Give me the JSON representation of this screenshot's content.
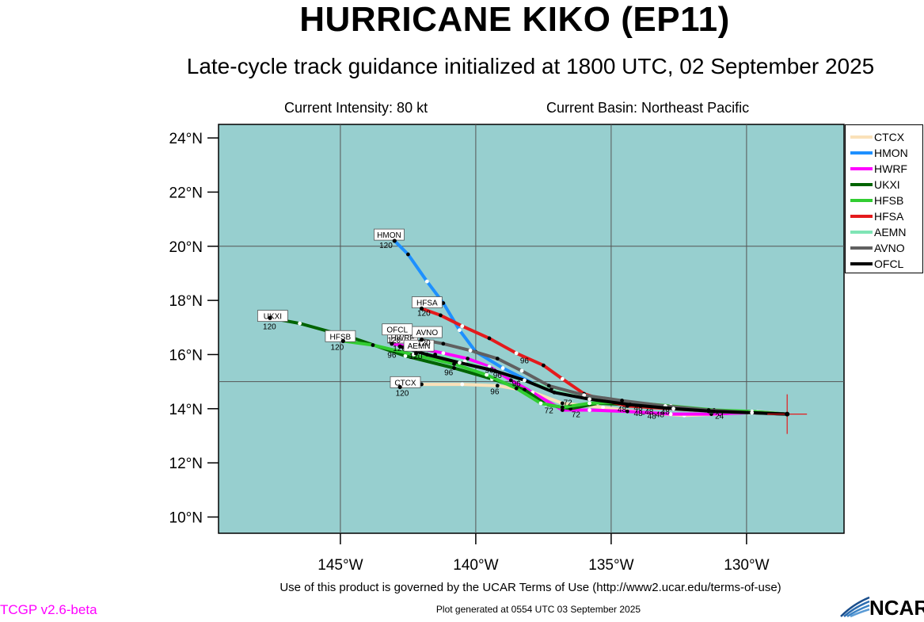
{
  "header": {
    "title": "HURRICANE KIKO (EP11)",
    "subtitle": "Late-cycle track guidance initialized at 1800 UTC, 02 September 2025",
    "current_intensity": "Current Intensity: 80 kt",
    "current_basin": "Current Basin: Northeast Pacific"
  },
  "footer": {
    "terms": "Use of this product is governed by the UCAR Terms of Use (http://www2.ucar.edu/terms-of-use)",
    "generated": "Plot generated at 0554 UTC   03 September 2025",
    "version": "TCGP v2.6-beta",
    "logo_text": "NCAR"
  },
  "colors": {
    "ocean": "#97cfcf",
    "grid": "#555555",
    "version_text": "#ff00ff"
  },
  "map": {
    "lon_range": [
      -149.5,
      -126.4
    ],
    "lat_range": [
      9.4,
      24.5
    ],
    "lat_ticks": [
      {
        "value": 24,
        "label": "24°N"
      },
      {
        "value": 22,
        "label": "22°N"
      },
      {
        "value": 20,
        "label": "20°N"
      },
      {
        "value": 18,
        "label": "18°N"
      },
      {
        "value": 16,
        "label": "16°N"
      },
      {
        "value": 14,
        "label": "14°N"
      },
      {
        "value": 12,
        "label": "12°N"
      },
      {
        "value": 10,
        "label": "10°N"
      }
    ],
    "lon_ticks": [
      {
        "value": -145,
        "label": "145°W"
      },
      {
        "value": -140,
        "label": "140°W"
      },
      {
        "value": -135,
        "label": "135°W"
      },
      {
        "value": -130,
        "label": "130°W"
      }
    ],
    "grid_lons": [
      -145,
      -140,
      -135,
      -130
    ],
    "grid_lats": [
      20,
      15
    ],
    "storm_position": {
      "lon": -128.5,
      "lat": 13.8
    }
  },
  "tracks": [
    {
      "name": "CTCX",
      "color": "#fae1b9",
      "points": [
        [
          -128.5,
          13.8
        ],
        [
          -129.6,
          13.9
        ],
        [
          -131.0,
          13.8
        ],
        [
          -132.3,
          13.75
        ],
        [
          -133.8,
          13.85
        ],
        [
          -135.3,
          14.05
        ],
        [
          -136.8,
          14.2
        ],
        [
          -138.0,
          14.65
        ],
        [
          -139.2,
          14.85
        ],
        [
          -140.5,
          14.9
        ],
        [
          -142.0,
          14.9
        ],
        [
          -142.8,
          14.8
        ]
      ],
      "marks": [
        {
          "lon": -131.0,
          "lat": 13.75,
          "label": "24"
        },
        {
          "lon": -133.5,
          "lat": 13.75,
          "label": "48"
        },
        {
          "lon": -139.3,
          "lat": 14.65,
          "label": "96"
        }
      ],
      "end_label": "120",
      "box_label": "CTCX",
      "box": {
        "lon": -142.6,
        "lat": 14.95
      }
    },
    {
      "name": "HMON",
      "color": "#1e90ff",
      "points": [
        [
          -128.5,
          13.8
        ],
        [
          -129.8,
          13.9
        ],
        [
          -131.2,
          13.9
        ],
        [
          -132.8,
          14.05
        ],
        [
          -134.5,
          14.2
        ],
        [
          -136.3,
          14.5
        ],
        [
          -137.8,
          14.9
        ],
        [
          -139.0,
          15.5
        ],
        [
          -140.0,
          16.1
        ],
        [
          -140.6,
          16.9
        ],
        [
          -141.2,
          17.9
        ],
        [
          -141.8,
          18.7
        ],
        [
          -142.5,
          19.7
        ],
        [
          -143.0,
          20.2
        ]
      ],
      "marks": [
        {
          "lon": -133.2,
          "lat": 13.8,
          "label": "48"
        },
        {
          "lon": -139.2,
          "lat": 15.25,
          "label": "96"
        }
      ],
      "end_label": "120",
      "box_label": "HMON",
      "box": {
        "lon": -143.2,
        "lat": 20.4
      }
    },
    {
      "name": "HWRF",
      "color": "#ff00ff",
      "points": [
        [
          -128.5,
          13.8
        ],
        [
          -129.9,
          13.85
        ],
        [
          -131.3,
          13.8
        ],
        [
          -132.8,
          13.8
        ],
        [
          -134.4,
          13.9
        ],
        [
          -135.8,
          13.95
        ],
        [
          -136.8,
          13.95
        ],
        [
          -137.9,
          14.6
        ],
        [
          -138.7,
          15.05
        ],
        [
          -139.5,
          15.55
        ],
        [
          -140.3,
          15.85
        ],
        [
          -141.2,
          16.05
        ],
        [
          -142.2,
          16.25
        ],
        [
          -143.1,
          16.4
        ]
      ],
      "marks": [
        {
          "lon": -136.3,
          "lat": 13.8,
          "label": "72"
        },
        {
          "lon": -139.5,
          "lat": 15.45,
          "label": "96"
        }
      ],
      "end_label": "120",
      "box_label": "HWRF",
      "box": {
        "lon": -142.7,
        "lat": 16.6
      }
    },
    {
      "name": "UKXI",
      "color": "#006400",
      "points": [
        [
          -128.5,
          13.8
        ],
        [
          -129.7,
          13.85
        ],
        [
          -131.1,
          13.9
        ],
        [
          -132.7,
          14.05
        ],
        [
          -134.2,
          14.15
        ],
        [
          -135.5,
          14.2
        ],
        [
          -136.5,
          14.0
        ],
        [
          -137.4,
          14.15
        ],
        [
          -138.2,
          14.7
        ],
        [
          -139.4,
          15.1
        ],
        [
          -140.8,
          15.5
        ],
        [
          -142.6,
          15.95
        ],
        [
          -144.5,
          16.6
        ],
        [
          -146.5,
          17.15
        ],
        [
          -147.6,
          17.35
        ]
      ],
      "marks": [
        {
          "lon": -134.0,
          "lat": 13.85,
          "label": "48"
        },
        {
          "lon": -137.3,
          "lat": 13.95,
          "label": "72"
        },
        {
          "lon": -141.0,
          "lat": 15.35,
          "label": "96"
        }
      ],
      "end_label": "120",
      "box_label": "UKXI",
      "box": {
        "lon": -147.5,
        "lat": 17.4
      }
    },
    {
      "name": "HFSB",
      "color": "#32cd32",
      "points": [
        [
          -128.5,
          13.8
        ],
        [
          -129.8,
          13.9
        ],
        [
          -131.2,
          13.95
        ],
        [
          -132.8,
          14.1
        ],
        [
          -134.5,
          14.25
        ],
        [
          -135.8,
          14.2
        ],
        [
          -136.8,
          14.05
        ],
        [
          -137.6,
          14.2
        ],
        [
          -138.5,
          14.75
        ],
        [
          -139.6,
          15.25
        ],
        [
          -140.8,
          15.65
        ],
        [
          -142.3,
          16.0
        ],
        [
          -143.8,
          16.35
        ],
        [
          -144.9,
          16.5
        ]
      ],
      "marks": [
        {
          "lon": -133.0,
          "lat": 13.9,
          "label": "48"
        },
        {
          "lon": -143.1,
          "lat": 16.0,
          "label": "96"
        }
      ],
      "end_label": "120",
      "box_label": "HFSB",
      "box": {
        "lon": -145.0,
        "lat": 16.65
      }
    },
    {
      "name": "HFSA",
      "color": "#e41a1c",
      "points": [
        [
          -128.5,
          13.8
        ],
        [
          -129.8,
          13.85
        ],
        [
          -131.2,
          13.9
        ],
        [
          -132.8,
          14.0
        ],
        [
          -134.4,
          14.1
        ],
        [
          -135.2,
          14.3
        ],
        [
          -136.0,
          14.55
        ],
        [
          -136.8,
          15.1
        ],
        [
          -137.5,
          15.6
        ],
        [
          -138.5,
          16.05
        ],
        [
          -139.5,
          16.6
        ],
        [
          -140.5,
          17.05
        ],
        [
          -141.3,
          17.45
        ],
        [
          -142.0,
          17.7
        ]
      ],
      "marks": [
        {
          "lon": -134.0,
          "lat": 14.05,
          "label": "48"
        },
        {
          "lon": -138.2,
          "lat": 15.8,
          "label": "96"
        }
      ],
      "end_label": "120",
      "box_label": "HFSA",
      "box": {
        "lon": -141.8,
        "lat": 17.9
      }
    },
    {
      "name": "AEMN",
      "color": "#7fe5b5",
      "points": [
        [
          -128.5,
          13.8
        ],
        [
          -129.9,
          13.85
        ],
        [
          -131.4,
          13.9
        ],
        [
          -133.0,
          14.05
        ],
        [
          -134.6,
          14.2
        ],
        [
          -136.0,
          14.4
        ],
        [
          -137.2,
          14.75
        ],
        [
          -138.3,
          15.05
        ],
        [
          -139.3,
          15.4
        ],
        [
          -140.4,
          15.75
        ],
        [
          -141.5,
          16.0
        ],
        [
          -142.2,
          16.05
        ]
      ],
      "marks": [
        {
          "lon": -133.6,
          "lat": 13.9,
          "label": "48"
        }
      ],
      "end_label": "120",
      "box_label": "AEMN",
      "box": {
        "lon": -142.1,
        "lat": 16.3
      }
    },
    {
      "name": "AVNO",
      "color": "#606060",
      "points": [
        [
          -128.5,
          13.8
        ],
        [
          -129.9,
          13.85
        ],
        [
          -131.4,
          13.95
        ],
        [
          -133.0,
          14.1
        ],
        [
          -134.6,
          14.3
        ],
        [
          -136.0,
          14.5
        ],
        [
          -137.3,
          14.85
        ],
        [
          -138.3,
          15.4
        ],
        [
          -139.2,
          15.85
        ],
        [
          -140.2,
          16.15
        ],
        [
          -141.2,
          16.4
        ],
        [
          -142.0,
          16.55
        ]
      ],
      "marks": [
        {
          "lon": -134.6,
          "lat": 14.0,
          "label": "48"
        }
      ],
      "end_label": "120",
      "box_label": "AVNO",
      "box": {
        "lon": -141.8,
        "lat": 16.8
      }
    },
    {
      "name": "OFCL",
      "color": "#000000",
      "points": [
        [
          -128.5,
          13.8
        ],
        [
          -129.8,
          13.85
        ],
        [
          -131.2,
          13.9
        ],
        [
          -132.7,
          14.0
        ],
        [
          -134.3,
          14.15
        ],
        [
          -135.8,
          14.35
        ],
        [
          -137.1,
          14.6
        ],
        [
          -138.2,
          15.05
        ],
        [
          -139.3,
          15.4
        ],
        [
          -140.6,
          15.7
        ],
        [
          -141.8,
          16.0
        ],
        [
          -142.8,
          16.3
        ]
      ],
      "marks": [
        {
          "lon": -136.6,
          "lat": 14.25,
          "label": "72"
        },
        {
          "lon": -138.5,
          "lat": 14.95,
          "label": "96"
        }
      ],
      "end_label": "120",
      "box_label": "OFCL",
      "box": {
        "lon": -142.9,
        "lat": 16.9
      }
    }
  ]
}
